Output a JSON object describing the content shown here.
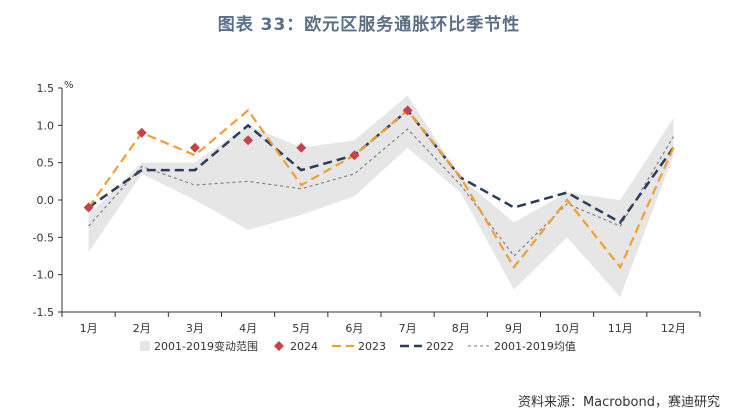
{
  "title": "图表 33：欧元区服务通胀环比季节性",
  "source": "资料来源：Macrobond，赛迪研究",
  "chart_data": {
    "type": "line",
    "unit_label": "%",
    "categories": [
      "1月",
      "2月",
      "3月",
      "4月",
      "5月",
      "6月",
      "7月",
      "8月",
      "9月",
      "10月",
      "11月",
      "12月"
    ],
    "ylim": [
      -1.5,
      1.5
    ],
    "yticks": [
      "1.5",
      "1.0",
      "0.5",
      "0.0",
      "-0.5",
      "-1.0",
      "-1.5"
    ],
    "band": {
      "name": "2001-2019变动范围",
      "upper": [
        -0.2,
        0.5,
        0.5,
        1.0,
        0.7,
        0.8,
        1.4,
        0.3,
        -0.3,
        0.1,
        0.0,
        1.1
      ],
      "lower": [
        -0.7,
        0.35,
        0.0,
        -0.4,
        -0.2,
        0.05,
        0.7,
        0.1,
        -1.2,
        -0.5,
        -1.3,
        0.6
      ],
      "color": "#e6e6e6"
    },
    "series": [
      {
        "name": "2024",
        "style": "diamond",
        "color": "#c8414b",
        "values": [
          -0.1,
          0.9,
          0.7,
          0.8,
          0.7,
          0.6,
          1.2,
          null,
          null,
          null,
          null,
          null
        ]
      },
      {
        "name": "2023",
        "style": "dashed",
        "color": "#f0a030",
        "values": [
          -0.1,
          0.9,
          0.6,
          1.2,
          0.2,
          0.6,
          1.2,
          0.3,
          -0.9,
          0.0,
          -0.9,
          0.7
        ]
      },
      {
        "name": "2022",
        "style": "dashed-bold",
        "color": "#2b3c5a",
        "values": [
          -0.1,
          0.4,
          0.4,
          1.0,
          0.4,
          0.6,
          1.2,
          0.3,
          -0.1,
          0.1,
          -0.3,
          0.7
        ]
      },
      {
        "name": "2001-2019均值",
        "style": "dotted",
        "color": "#7a7a7a",
        "values": [
          -0.35,
          0.45,
          0.2,
          0.25,
          0.15,
          0.35,
          0.95,
          0.2,
          -0.75,
          -0.05,
          -0.35,
          0.85
        ]
      }
    ]
  }
}
